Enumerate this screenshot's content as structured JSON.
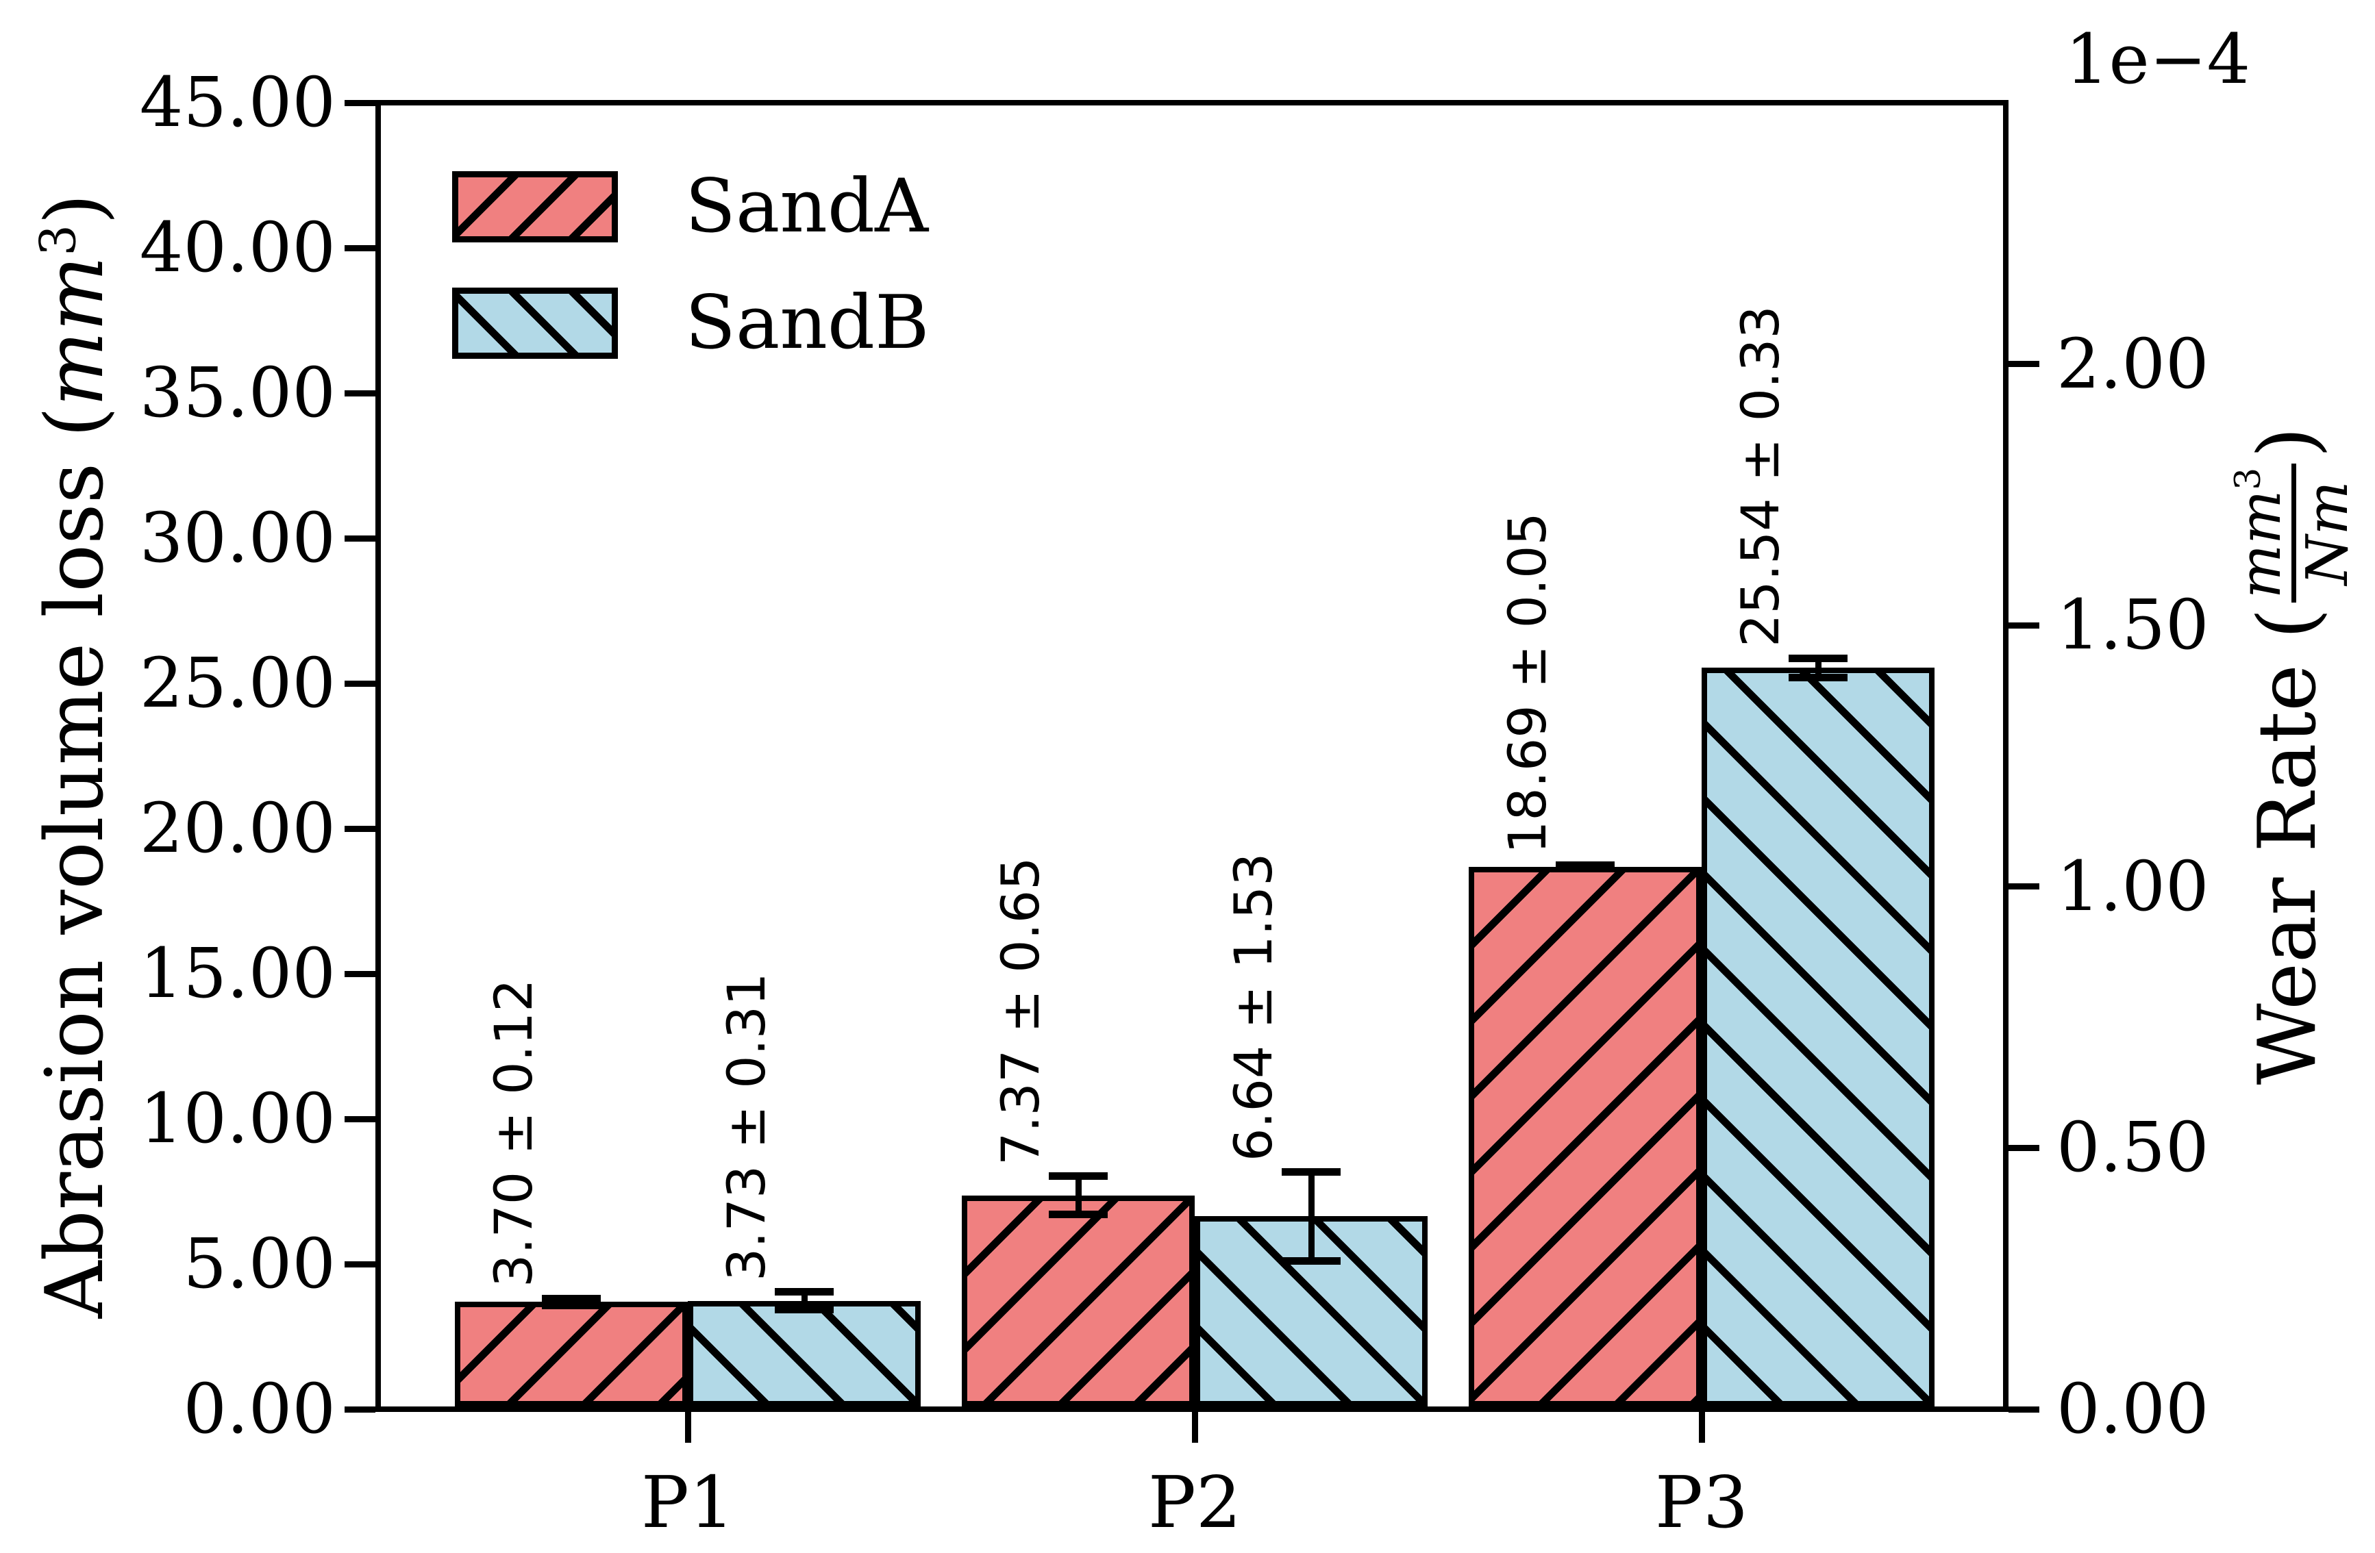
{
  "chart_data": {
    "type": "bar",
    "categories": [
      "P1",
      "P2",
      "P3"
    ],
    "series": [
      {
        "name": "SandA",
        "color": "#f08080",
        "hatch": "/",
        "values": [
          3.7,
          7.37,
          18.69
        ],
        "errors": [
          0.12,
          0.65,
          0.05
        ],
        "bar_labels": [
          "3.70 ± 0.12",
          "7.37 ± 0.65",
          "18.69 ± 0.05"
        ]
      },
      {
        "name": "SandB",
        "color": "#b2d9e7",
        "hatch": "\\",
        "values": [
          3.73,
          6.64,
          25.54
        ],
        "errors": [
          0.31,
          1.53,
          0.33
        ],
        "bar_labels": [
          "3.73 ± 0.31",
          "6.64 ± 1.53",
          "25.54 ± 0.33"
        ]
      }
    ],
    "left_axis": {
      "label_prefix": "Abrasion volume loss (",
      "label_unit": "mm",
      "label_exp": "3",
      "label_suffix": ")",
      "min": 0,
      "max": 45,
      "ticks": [
        {
          "value": 0,
          "label": "0.00"
        },
        {
          "value": 5,
          "label": "5.00"
        },
        {
          "value": 10,
          "label": "10.00"
        },
        {
          "value": 15,
          "label": "15.00"
        },
        {
          "value": 20,
          "label": "20.00"
        },
        {
          "value": 25,
          "label": "25.00"
        },
        {
          "value": 30,
          "label": "30.00"
        },
        {
          "value": 35,
          "label": "35.00"
        },
        {
          "value": 40,
          "label": "40.00"
        },
        {
          "value": 45,
          "label": "45.00"
        }
      ]
    },
    "right_axis": {
      "label_prefix": "Wear Rate (",
      "label_num_unit": "mm",
      "label_num_exp": "3",
      "label_den_unit": "Nm",
      "label_suffix": ")",
      "offset_text": "1e−4",
      "ticks": [
        {
          "value": 0.0,
          "label": "0.00",
          "left_equiv": 0
        },
        {
          "value": 0.5,
          "label": "0.50",
          "left_equiv": 9
        },
        {
          "value": 1.0,
          "label": "1.00",
          "left_equiv": 18
        },
        {
          "value": 1.5,
          "label": "1.50",
          "left_equiv": 27
        },
        {
          "value": 2.0,
          "label": "2.00",
          "left_equiv": 36
        }
      ]
    },
    "legend": [
      "SandA",
      "SandB"
    ],
    "layout_hints": {
      "grid": "off",
      "legend_position": "upper-left-inside",
      "bar_label_rotation": 90,
      "error_bars": "on"
    }
  }
}
